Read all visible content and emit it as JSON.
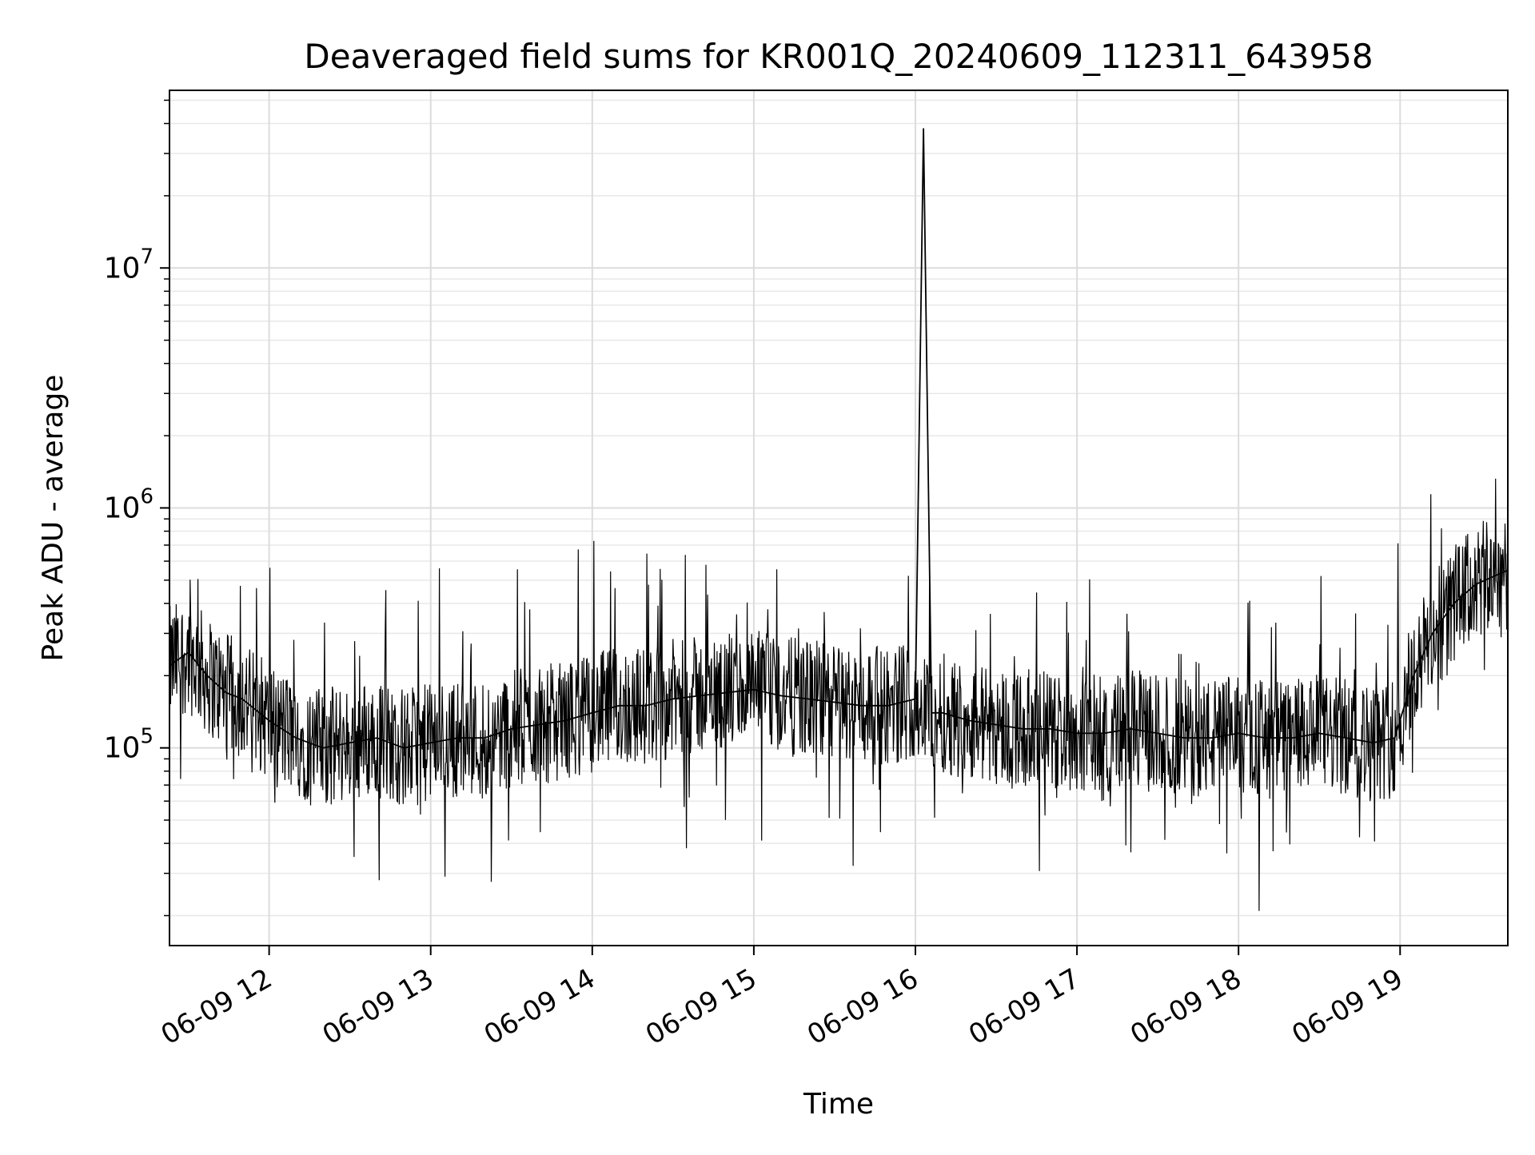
{
  "chart_data": {
    "type": "line",
    "title": "Deaveraged field sums for KR001Q_20240609_112311_643958",
    "xlabel": "Time",
    "ylabel": "Peak ADU - average",
    "xscale": "time",
    "yscale": "log",
    "xlim": [
      "2024-06-09 11:23",
      "2024-06-09 19:40"
    ],
    "ylim": [
      15000,
      55000000
    ],
    "grid": true,
    "legend": "none",
    "line_color": "#000000",
    "x_ticks": [
      {
        "value": "2024-06-09 12:00",
        "label": "06-09 12"
      },
      {
        "value": "2024-06-09 13:00",
        "label": "06-09 13"
      },
      {
        "value": "2024-06-09 14:00",
        "label": "06-09 14"
      },
      {
        "value": "2024-06-09 15:00",
        "label": "06-09 15"
      },
      {
        "value": "2024-06-09 16:00",
        "label": "06-09 16"
      },
      {
        "value": "2024-06-09 17:00",
        "label": "06-09 17"
      },
      {
        "value": "2024-06-09 18:00",
        "label": "06-09 18"
      },
      {
        "value": "2024-06-09 19:00",
        "label": "06-09 19"
      }
    ],
    "y_ticks": [
      {
        "value": 100000,
        "base": "10",
        "exp": "5"
      },
      {
        "value": 1000000,
        "base": "10",
        "exp": "6"
      },
      {
        "value": 10000000,
        "base": "10",
        "exp": "7"
      }
    ],
    "series": [
      {
        "x": [
          "2024-06-09 11:23",
          "2024-06-09 11:30",
          "2024-06-09 11:37",
          "2024-06-09 11:44",
          "2024-06-09 11:50",
          "2024-06-09 12:00",
          "2024-06-09 12:10",
          "2024-06-09 12:20",
          "2024-06-09 12:30",
          "2024-06-09 12:40",
          "2024-06-09 12:50",
          "2024-06-09 13:00",
          "2024-06-09 13:10",
          "2024-06-09 13:20",
          "2024-06-09 13:30",
          "2024-06-09 13:40",
          "2024-06-09 13:50",
          "2024-06-09 14:00",
          "2024-06-09 14:10",
          "2024-06-09 14:20",
          "2024-06-09 14:30",
          "2024-06-09 14:40",
          "2024-06-09 14:50",
          "2024-06-09 15:00",
          "2024-06-09 15:10",
          "2024-06-09 15:20",
          "2024-06-09 15:30",
          "2024-06-09 15:40",
          "2024-06-09 15:50",
          "2024-06-09 16:00",
          "2024-06-09 16:03",
          "2024-06-09 16:06",
          "2024-06-09 16:10",
          "2024-06-09 16:20",
          "2024-06-09 16:30",
          "2024-06-09 16:40",
          "2024-06-09 16:50",
          "2024-06-09 17:00",
          "2024-06-09 17:10",
          "2024-06-09 17:20",
          "2024-06-09 17:30",
          "2024-06-09 17:40",
          "2024-06-09 17:50",
          "2024-06-09 18:00",
          "2024-06-09 18:10",
          "2024-06-09 18:20",
          "2024-06-09 18:30",
          "2024-06-09 18:40",
          "2024-06-09 18:50",
          "2024-06-09 18:58",
          "2024-06-09 19:05",
          "2024-06-09 19:12",
          "2024-06-09 19:20",
          "2024-06-09 19:28",
          "2024-06-09 19:35",
          "2024-06-09 19:40"
        ],
        "values": [
          220000,
          250000,
          200000,
          170000,
          160000,
          130000,
          110000,
          100000,
          105000,
          110000,
          100000,
          105000,
          110000,
          110000,
          120000,
          125000,
          130000,
          140000,
          150000,
          150000,
          160000,
          165000,
          170000,
          175000,
          165000,
          160000,
          155000,
          150000,
          150000,
          160000,
          38000000,
          140000,
          140000,
          130000,
          125000,
          120000,
          120000,
          115000,
          115000,
          120000,
          115000,
          110000,
          110000,
          115000,
          110000,
          110000,
          115000,
          110000,
          105000,
          110000,
          200000,
          300000,
          400000,
          480000,
          520000,
          550000
        ]
      }
    ]
  }
}
